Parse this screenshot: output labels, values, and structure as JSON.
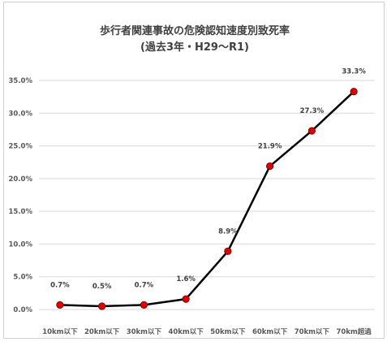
{
  "chart_data": {
    "type": "line",
    "title": "歩行者関連事故の危険認知速度別致死率",
    "subtitle": "(過去3年・H29～R1)",
    "xlabel": "",
    "ylabel": "",
    "categories": [
      "10km以下",
      "20km以下",
      "30km以下",
      "40km以下",
      "50km以下",
      "60km以下",
      "70km以下",
      "70km超過"
    ],
    "values": [
      0.7,
      0.5,
      0.7,
      1.6,
      8.9,
      21.9,
      27.3,
      33.3
    ],
    "data_labels": [
      "0.7%",
      "0.5%",
      "0.7%",
      "1.6%",
      "8.9%",
      "21.9%",
      "27.3%",
      "33.3%"
    ],
    "ylim": [
      0,
      35
    ],
    "y_ticks": [
      0,
      5,
      10,
      15,
      20,
      25,
      30,
      35
    ],
    "y_tick_labels": [
      "0.0%",
      "5.0%",
      "10.0%",
      "15.0%",
      "20.0%",
      "25.0%",
      "30.0%",
      "35.0%"
    ],
    "grid": true,
    "legend": "none",
    "colors": {
      "line": "#000000",
      "marker_fill": "#e00000",
      "marker_stroke": "#5a0000",
      "grid": "#d9d9d9",
      "text": "#595959"
    }
  }
}
